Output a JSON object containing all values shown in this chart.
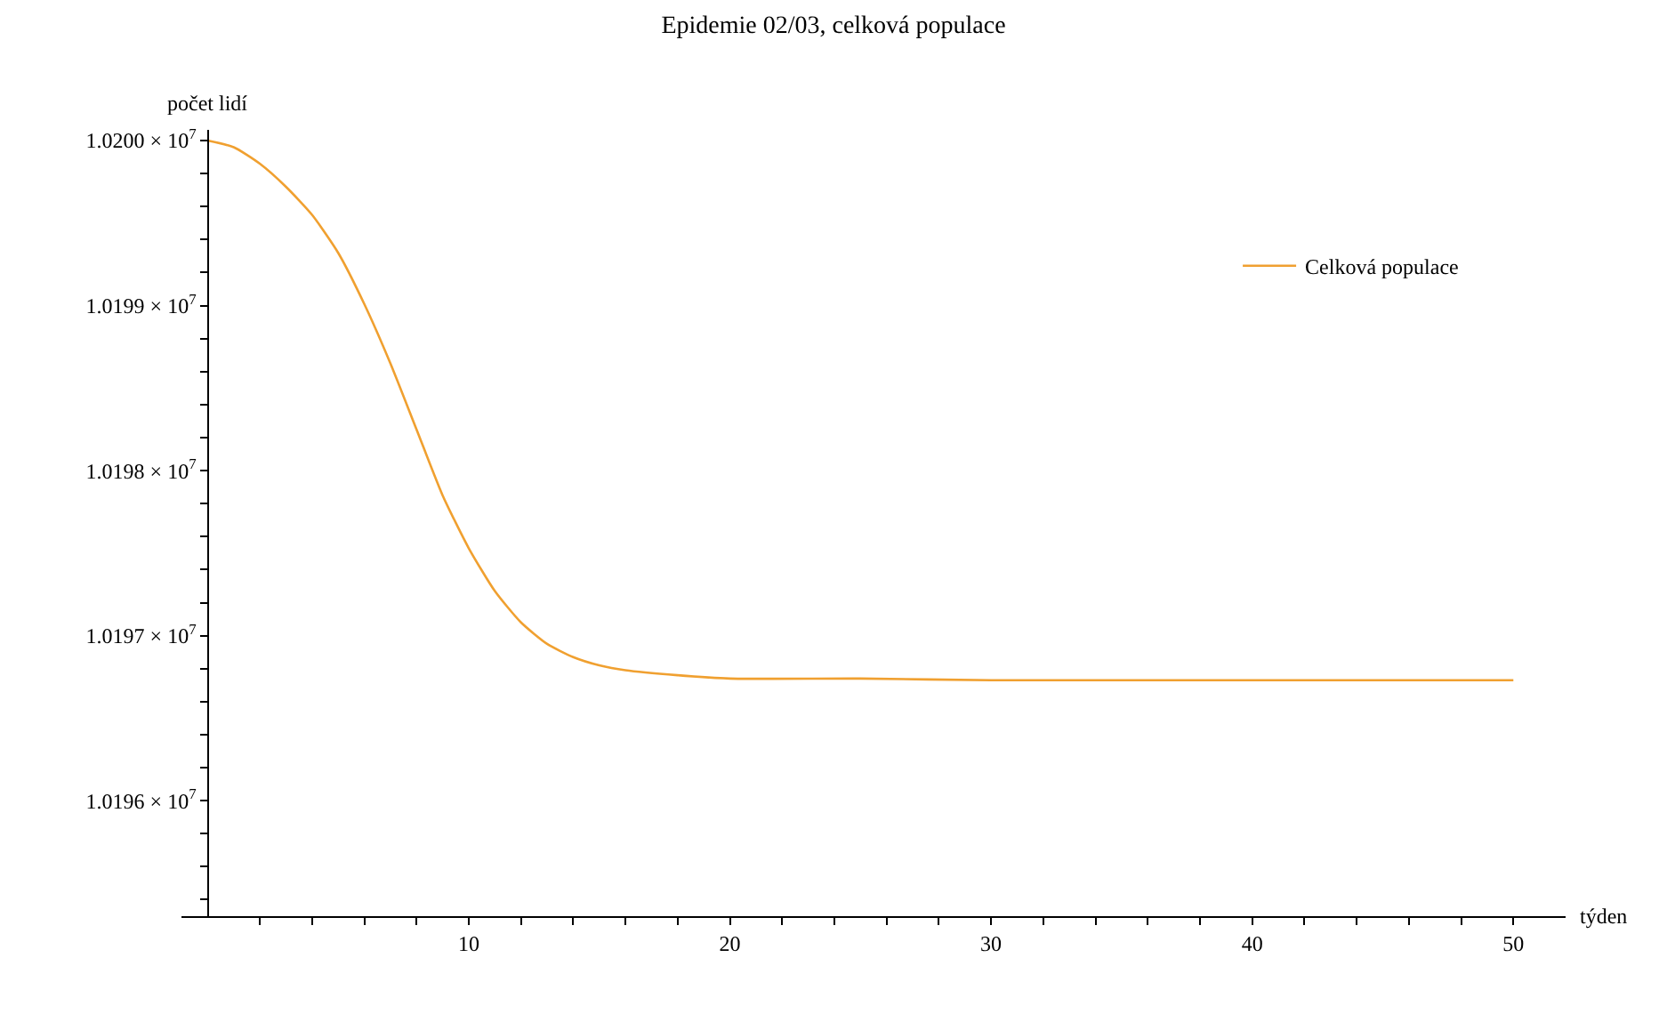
{
  "chart_data": {
    "type": "line",
    "title": "Epidemie 02/03, celková populace",
    "xlabel": "týden",
    "ylabel": "počet lidí",
    "x": [
      0,
      1,
      2,
      3,
      4,
      5,
      6,
      7,
      8,
      9,
      10,
      11,
      12,
      13,
      14,
      15,
      16,
      18,
      20,
      25,
      30,
      40,
      50
    ],
    "series": [
      {
        "name": "Celková populace",
        "color": "#f0a030",
        "values": [
          10200000,
          10199960,
          10199860,
          10199720,
          10199550,
          10199320,
          10199010,
          10198650,
          10198250,
          10197850,
          10197530,
          10197270,
          10197080,
          10196950,
          10196870,
          10196820,
          10196790,
          10196760,
          10196740,
          10196740,
          10196730,
          10196730,
          10196730
        ]
      }
    ],
    "xlim": [
      -1,
      52
    ],
    "ylim": [
      10195300,
      10200065
    ],
    "xticks": [
      {
        "value": 2,
        "label": null
      },
      {
        "value": 4,
        "label": null
      },
      {
        "value": 6,
        "label": null
      },
      {
        "value": 8,
        "label": null
      },
      10,
      {
        "value": 12,
        "label": null
      },
      {
        "value": 14,
        "label": null
      },
      {
        "value": 16,
        "label": null
      },
      {
        "value": 18,
        "label": null
      },
      20,
      {
        "value": 22,
        "label": null
      },
      {
        "value": 24,
        "label": null
      },
      {
        "value": 26,
        "label": null
      },
      {
        "value": 28,
        "label": null
      },
      30,
      {
        "value": 32,
        "label": null
      },
      {
        "value": 34,
        "label": null
      },
      {
        "value": 36,
        "label": null
      },
      {
        "value": 38,
        "label": null
      },
      40,
      {
        "value": 42,
        "label": null
      },
      {
        "value": 44,
        "label": null
      },
      {
        "value": 46,
        "label": null
      },
      {
        "value": 48,
        "label": null
      },
      50
    ],
    "yticks": [
      {
        "value": 10195400,
        "label": null
      },
      {
        "value": 10195600,
        "label": null
      },
      {
        "value": 10195800,
        "label": null
      },
      {
        "value": 10196000,
        "label": "1.0196 × 10$^{7}$"
      },
      {
        "value": 10196200,
        "label": null
      },
      {
        "value": 10196400,
        "label": null
      },
      {
        "value": 10196600,
        "label": null
      },
      {
        "value": 10196800,
        "label": null
      },
      {
        "value": 10197000,
        "label": "1.0197 × 10$^{7}$"
      },
      {
        "value": 10197200,
        "label": null
      },
      {
        "value": 10197400,
        "label": null
      },
      {
        "value": 10197600,
        "label": null
      },
      {
        "value": 10197800,
        "label": null
      },
      {
        "value": 10198000,
        "label": "1.0198 × 10$^{7}$"
      },
      {
        "value": 10198200,
        "label": null
      },
      {
        "value": 10198400,
        "label": null
      },
      {
        "value": 10198600,
        "label": null
      },
      {
        "value": 10198800,
        "label": null
      },
      {
        "value": 10199000,
        "label": "1.0199 × 10$^{7}$"
      },
      {
        "value": 10199200,
        "label": null
      },
      {
        "value": 10199400,
        "label": null
      },
      {
        "value": 10199600,
        "label": null
      },
      {
        "value": 10199800,
        "label": null
      },
      {
        "value": 10200000,
        "label": "1.0200 × 10$^{7}$"
      }
    ],
    "legend": "top right",
    "marker": "none",
    "line_style": "solid"
  }
}
